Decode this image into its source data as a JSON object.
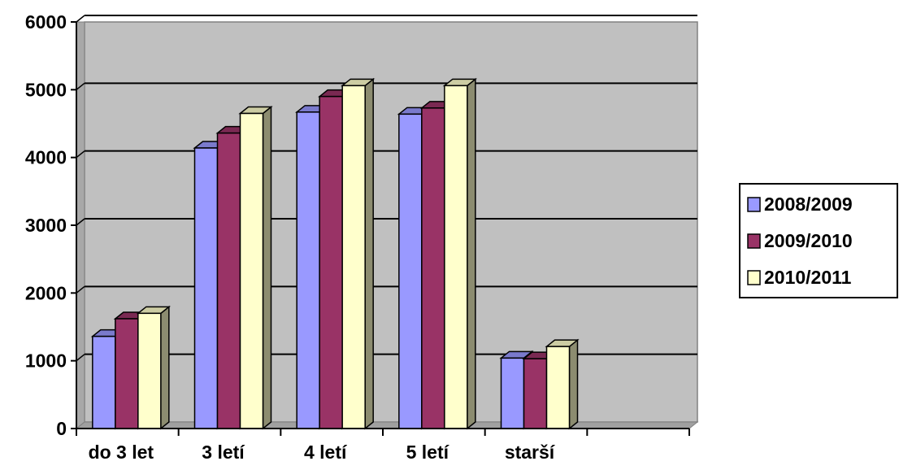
{
  "chart_data": {
    "type": "bar",
    "title": "",
    "xlabel": "",
    "ylabel": "",
    "ylim": [
      0,
      6000
    ],
    "yticks": [
      0,
      1000,
      2000,
      3000,
      4000,
      5000,
      6000
    ],
    "ytick_labels": [
      "0",
      "1000",
      "2000",
      "3000",
      "4000",
      "5000",
      "6000"
    ],
    "categories": [
      "do 3 let",
      "3 letí",
      "4 letí",
      "5 letí",
      "starší",
      ""
    ],
    "series": [
      {
        "name": "2008/2009",
        "color": "#9999FF",
        "values": [
          1360,
          4140,
          4670,
          4640,
          1040,
          null
        ]
      },
      {
        "name": "2009/2010",
        "color": "#993366",
        "values": [
          1620,
          4360,
          4900,
          4730,
          1030,
          null
        ]
      },
      {
        "name": "2010/2011",
        "color": "#FFFFCC",
        "values": [
          1700,
          4650,
          5060,
          5060,
          1210,
          null
        ]
      }
    ],
    "grid": true,
    "legend": "right",
    "plot_background": "#C0C0C0"
  }
}
